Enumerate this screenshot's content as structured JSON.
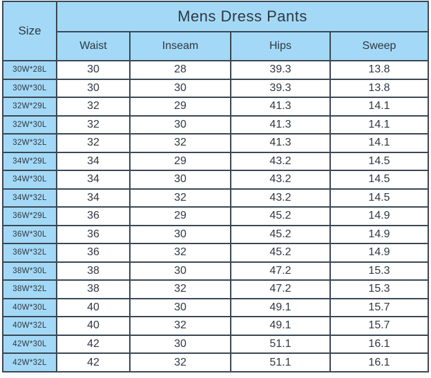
{
  "table": {
    "title": "Mens Dress Pants",
    "size_header": "Size",
    "columns": [
      "Waist",
      "Inseam",
      "Hips",
      "Sweep"
    ],
    "rows": [
      {
        "size": "30W*28L",
        "waist": "30",
        "inseam": "28",
        "hips": "39.3",
        "sweep": "13.8"
      },
      {
        "size": "30W*30L",
        "waist": "30",
        "inseam": "30",
        "hips": "39.3",
        "sweep": "13.8"
      },
      {
        "size": "32W*29L",
        "waist": "32",
        "inseam": "29",
        "hips": "41.3",
        "sweep": "14.1"
      },
      {
        "size": "32W*30L",
        "waist": "32",
        "inseam": "30",
        "hips": "41.3",
        "sweep": "14.1"
      },
      {
        "size": "32W*32L",
        "waist": "32",
        "inseam": "32",
        "hips": "41.3",
        "sweep": "14.1"
      },
      {
        "size": "34W*29L",
        "waist": "34",
        "inseam": "29",
        "hips": "43.2",
        "sweep": "14.5"
      },
      {
        "size": "34W*30L",
        "waist": "34",
        "inseam": "30",
        "hips": "43.2",
        "sweep": "14.5"
      },
      {
        "size": "34W*32L",
        "waist": "34",
        "inseam": "32",
        "hips": "43.2",
        "sweep": "14.5"
      },
      {
        "size": "36W*29L",
        "waist": "36",
        "inseam": "29",
        "hips": "45.2",
        "sweep": "14.9"
      },
      {
        "size": "36W*30L",
        "waist": "36",
        "inseam": "30",
        "hips": "45.2",
        "sweep": "14.9"
      },
      {
        "size": "36W*32L",
        "waist": "36",
        "inseam": "32",
        "hips": "45.2",
        "sweep": "14.9"
      },
      {
        "size": "38W*30L",
        "waist": "38",
        "inseam": "30",
        "hips": "47.2",
        "sweep": "15.3"
      },
      {
        "size": "38W*32L",
        "waist": "38",
        "inseam": "32",
        "hips": "47.2",
        "sweep": "15.3"
      },
      {
        "size": "40W*30L",
        "waist": "40",
        "inseam": "30",
        "hips": "49.1",
        "sweep": "15.7"
      },
      {
        "size": "40W*32L",
        "waist": "40",
        "inseam": "32",
        "hips": "49.1",
        "sweep": "15.7"
      },
      {
        "size": "42W*30L",
        "waist": "42",
        "inseam": "30",
        "hips": "51.1",
        "sweep": "16.1"
      },
      {
        "size": "42W*32L",
        "waist": "42",
        "inseam": "32",
        "hips": "51.1",
        "sweep": "16.1"
      }
    ]
  },
  "colors": {
    "header_bg": "#a3d9f6",
    "border": "#3a4653",
    "cell_bg": "#ffffff",
    "text": "#2f3742"
  },
  "chart_data": {
    "type": "table",
    "title": "Mens Dress Pants",
    "columns": [
      "Size",
      "Waist",
      "Inseam",
      "Hips",
      "Sweep"
    ],
    "rows": [
      [
        "30W*28L",
        30,
        28,
        39.3,
        13.8
      ],
      [
        "30W*30L",
        30,
        30,
        39.3,
        13.8
      ],
      [
        "32W*29L",
        32,
        29,
        41.3,
        14.1
      ],
      [
        "32W*30L",
        32,
        30,
        41.3,
        14.1
      ],
      [
        "32W*32L",
        32,
        32,
        41.3,
        14.1
      ],
      [
        "34W*29L",
        34,
        29,
        43.2,
        14.5
      ],
      [
        "34W*30L",
        34,
        30,
        43.2,
        14.5
      ],
      [
        "34W*32L",
        34,
        32,
        43.2,
        14.5
      ],
      [
        "36W*29L",
        36,
        29,
        45.2,
        14.9
      ],
      [
        "36W*30L",
        36,
        30,
        45.2,
        14.9
      ],
      [
        "36W*32L",
        36,
        32,
        45.2,
        14.9
      ],
      [
        "38W*30L",
        38,
        30,
        47.2,
        15.3
      ],
      [
        "38W*32L",
        38,
        32,
        47.2,
        15.3
      ],
      [
        "40W*30L",
        40,
        30,
        49.1,
        15.7
      ],
      [
        "40W*32L",
        40,
        32,
        49.1,
        15.7
      ],
      [
        "42W*30L",
        42,
        30,
        51.1,
        16.1
      ],
      [
        "42W*32L",
        42,
        32,
        51.1,
        16.1
      ]
    ]
  }
}
